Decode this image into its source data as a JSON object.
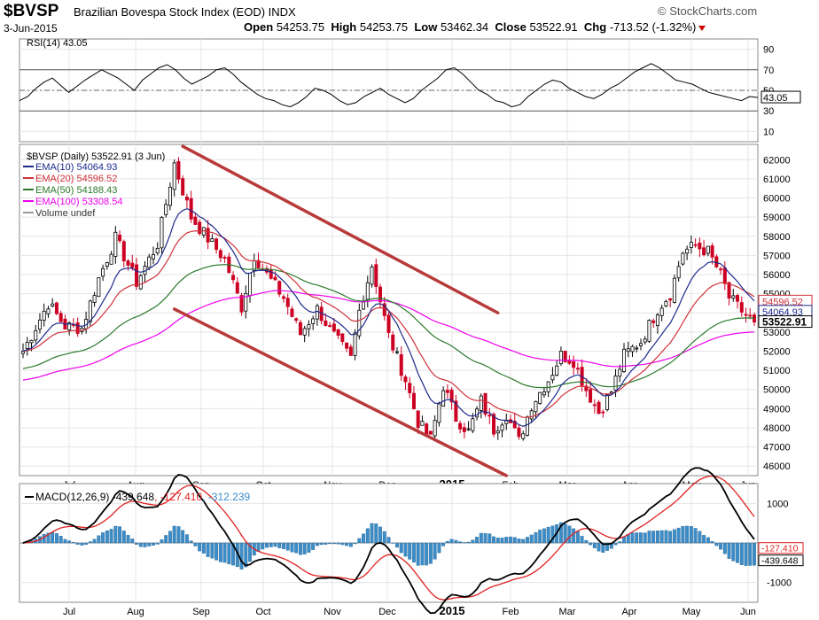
{
  "header": {
    "symbol": "$BVSP",
    "description": "Brazilian Bovespa Stock Index (EOD)  INDX",
    "date": "3-Jun-2015",
    "open_label": "Open",
    "open": "54253.75",
    "high_label": "High",
    "high": "54253.75",
    "low_label": "Low",
    "low": "53462.34",
    "close_label": "Close",
    "close": "53522.91",
    "chg_label": "Chg",
    "chg": "-713.52 (-1.32%)",
    "brand": "© StockCharts.com"
  },
  "colors": {
    "up": "#000000",
    "down": "#cc0022",
    "ema10": "#1c2a8c",
    "ema20": "#d0323a",
    "ema50": "#2a7a2a",
    "ema100": "#ee00ee",
    "macd": "#000000",
    "signal": "#e02020",
    "histogram": "#3c8cc8",
    "trendline": "#b83a3a"
  },
  "chart_data": [
    {
      "type": "line",
      "title": "RSI(14) 43.05",
      "ylim": [
        0,
        100
      ],
      "ticks": [
        "90",
        "70",
        "50",
        "30",
        "10"
      ],
      "tick_values": [
        90,
        70,
        50,
        30,
        10
      ],
      "reference_lines": [
        70,
        30
      ],
      "rsi_value_label": "43.05",
      "values": [
        40,
        44,
        52,
        58,
        62,
        55,
        48,
        54,
        60,
        65,
        70,
        66,
        62,
        56,
        50,
        60,
        66,
        72,
        75,
        70,
        62,
        56,
        60,
        64,
        70,
        72,
        66,
        58,
        52,
        46,
        42,
        40,
        36,
        34,
        38,
        44,
        52,
        50,
        46,
        40,
        36,
        38,
        44,
        48,
        52,
        46,
        42,
        38,
        42,
        50,
        56,
        62,
        70,
        72,
        66,
        58,
        50,
        46,
        40,
        38,
        34,
        36,
        44,
        50,
        56,
        60,
        58,
        52,
        48,
        44,
        42,
        46,
        52,
        56,
        62,
        68,
        72,
        76,
        72,
        66,
        60,
        58,
        56,
        52,
        48,
        46,
        44,
        42,
        40,
        44,
        43
      ]
    },
    {
      "type": "candlestick",
      "title": "$BVSP (Daily) 53522.91 (3 Jun)",
      "ylim": [
        45500,
        62800
      ],
      "y_ticks": [
        46000,
        47000,
        48000,
        49000,
        50000,
        51000,
        52000,
        53000,
        54000,
        55000,
        56000,
        57000,
        58000,
        59000,
        60000,
        61000,
        62000
      ],
      "x_labels": [
        "Jul",
        "Aug",
        "Sep",
        "Oct",
        "Nov",
        "Dec",
        "2015",
        "Feb",
        "Mar",
        "Apr",
        "May",
        "Jun"
      ],
      "legend": [
        {
          "name": "EMA(10) 54064.93",
          "color": "#1c2a8c"
        },
        {
          "name": "EMA(20) 54596.52",
          "color": "#d0323a"
        },
        {
          "name": "EMA(50) 54188.43",
          "color": "#2a7a2a"
        },
        {
          "name": "EMA(100) 53308.54",
          "color": "#ee00ee"
        },
        {
          "name": "Volume undef",
          "color": "#999999"
        }
      ],
      "price_labels": [
        {
          "text": "54596.52",
          "value": 54596.52,
          "color": "#d0323a"
        },
        {
          "text": "54064.93",
          "value": 54064.93,
          "color": "#1c2a8c"
        },
        {
          "text": "53522.91",
          "value": 53522.91,
          "color": "#000000"
        }
      ],
      "anchors": [
        [
          0,
          52000
        ],
        [
          6,
          54500
        ],
        [
          10,
          53300
        ],
        [
          14,
          53200
        ],
        [
          18,
          55800
        ],
        [
          22,
          57900
        ],
        [
          27,
          55600
        ],
        [
          32,
          57600
        ],
        [
          36,
          61800
        ],
        [
          40,
          59000
        ],
        [
          45,
          57600
        ],
        [
          48,
          56800
        ],
        [
          52,
          54300
        ],
        [
          55,
          57000
        ],
        [
          58,
          56000
        ],
        [
          62,
          54800
        ],
        [
          66,
          52900
        ],
        [
          70,
          54200
        ],
        [
          74,
          52800
        ],
        [
          78,
          51600
        ],
        [
          80,
          54100
        ],
        [
          83,
          56500
        ],
        [
          87,
          52800
        ],
        [
          91,
          50500
        ],
        [
          94,
          48300
        ],
        [
          97,
          47400
        ],
        [
          100,
          50200
        ],
        [
          103,
          48500
        ],
        [
          106,
          47800
        ],
        [
          109,
          49400
        ],
        [
          112,
          47900
        ],
        [
          115,
          48700
        ],
        [
          118,
          47300
        ],
        [
          121,
          49200
        ],
        [
          125,
          50500
        ],
        [
          128,
          51800
        ],
        [
          131,
          51500
        ],
        [
          134,
          50000
        ],
        [
          137,
          48800
        ],
        [
          140,
          49900
        ],
        [
          143,
          51800
        ],
        [
          147,
          52500
        ],
        [
          151,
          54200
        ],
        [
          154,
          55000
        ],
        [
          157,
          57200
        ],
        [
          160,
          57500
        ],
        [
          163,
          57200
        ],
        [
          166,
          56000
        ],
        [
          168,
          54800
        ],
        [
          171,
          54100
        ],
        [
          174,
          53522.91
        ]
      ],
      "bars": 175,
      "trendlines": [
        {
          "from": [
            38,
            62700
          ],
          "to": [
            113,
            54000
          ]
        },
        {
          "from": [
            36,
            54200
          ],
          "to": [
            115,
            45500
          ]
        }
      ]
    },
    {
      "type": "line",
      "title": "MACD(12,26,9) -439.648, -127.410, -312.239",
      "series_names": [
        "MACD(12,26,9) -439.648",
        "-127.410",
        "-312.239"
      ],
      "ylim": [
        -1500,
        1500
      ],
      "y_ticks": [
        1000,
        -1000
      ],
      "x_labels": [
        "Jul",
        "Aug",
        "Sep",
        "Oct",
        "Nov",
        "Dec",
        "2015",
        "Feb",
        "Mar",
        "Apr",
        "May",
        "Jun"
      ],
      "value_labels": [
        {
          "text": "-127.410",
          "value": -127.41,
          "color": "#e02020"
        },
        {
          "text": "-439.648",
          "value": -439.648,
          "color": "#000000"
        }
      ]
    }
  ]
}
